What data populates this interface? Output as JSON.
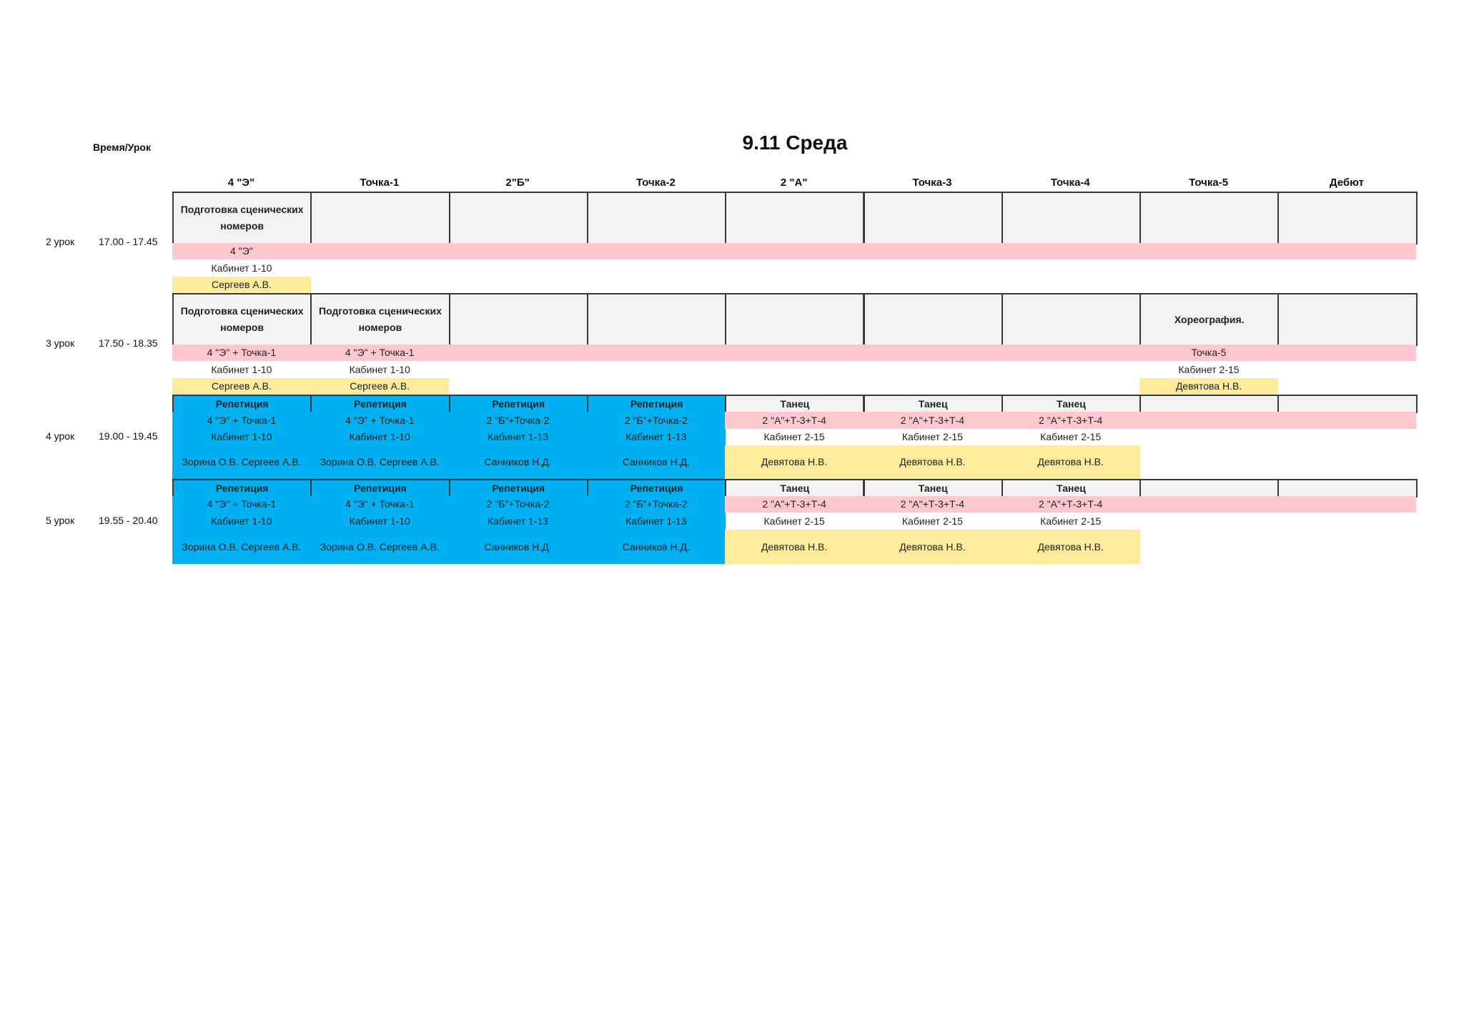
{
  "title": "9.11 Среда",
  "corner_label": "Время/Урок",
  "colors": {
    "blue": "#00b0f0",
    "pink": "#ffc7ce",
    "yellow": "#ffeb9c",
    "gray": "#f2f2f2"
  },
  "columns": [
    "4 \"Э\"",
    "Точка-1",
    "2\"Б\"",
    "Точка-2",
    "2 \"А\"",
    "Точка-3",
    "Точка-4",
    "Точка-5",
    "Дебют"
  ],
  "lessons": [
    {
      "label": "2 урок",
      "time": "17.00 - 17.45",
      "cells": [
        {
          "title": "Подготовка сценических номеров",
          "group": "4 \"Э\"",
          "room": "Кабинет 1-10",
          "teacher": "Сергеев А.В."
        },
        {},
        {},
        {},
        {},
        {},
        {},
        {},
        {}
      ]
    },
    {
      "label": "3 урок",
      "time": "17.50 - 18.35",
      "cells": [
        {
          "title": "Подготовка сценических номеров",
          "group": "4 \"Э\" + Точка-1",
          "room": "Кабинет 1-10",
          "teacher": "Сергеев А.В."
        },
        {
          "title": "Подготовка сценических номеров",
          "group": "4 \"Э\" + Точка-1",
          "room": "Кабинет 1-10",
          "teacher": "Сергеев А.В."
        },
        {},
        {},
        {},
        {},
        {},
        {
          "title": "Хореография.",
          "group": "Точка-5",
          "room": "Кабинет 2-15",
          "teacher": "Девятова Н.В."
        },
        {}
      ]
    },
    {
      "label": "4 урок",
      "time": "19.00 - 19.45",
      "cells": [
        {
          "highlight": "blue",
          "title": "Репетиция",
          "group": "4 \"Э\" + Точка-1",
          "room": "Кабинет 1-10",
          "teacher": "Зорина О.В.     Сергеев А.В."
        },
        {
          "highlight": "blue",
          "title": "Репетиция",
          "group": "4 \"Э\" + Точка-1",
          "room": "Кабинет 1-10",
          "teacher": "Зорина О.В.     Сергеев А.В."
        },
        {
          "highlight": "blue",
          "title": "Репетиция",
          "group": "2 \"Б\"+Точка-2",
          "room": "Кабинет 1-13",
          "teacher": "Санников Н.Д."
        },
        {
          "highlight": "blue",
          "title": "Репетиция",
          "group": "2 \"Б\"+Точка-2",
          "room": "Кабинет 1-13",
          "teacher": "Санников Н.Д."
        },
        {
          "title": "Танец",
          "group": "2 \"А\"+Т-3+Т-4",
          "room": "Кабинет 2-15",
          "teacher": "Девятова Н.В."
        },
        {
          "title": "Танец",
          "group": "2 \"А\"+Т-3+Т-4",
          "room": "Кабинет 2-15",
          "teacher": "Девятова Н.В."
        },
        {
          "title": "Танец",
          "group": "2 \"А\"+Т-3+Т-4",
          "room": "Кабинет 2-15",
          "teacher": "Девятова Н.В."
        },
        {},
        {}
      ]
    },
    {
      "label": "5 урок",
      "time": "19.55 - 20.40",
      "cells": [
        {
          "highlight": "blue",
          "title": "Репетиция",
          "group": "4 \"Э\" + Точка-1",
          "room": "Кабинет 1-10",
          "teacher": "Зорина О.В.     Сергеев А.В."
        },
        {
          "highlight": "blue",
          "title": "Репетиция",
          "group": "4 \"Э\" + Точка-1",
          "room": "Кабинет 1-10",
          "teacher": "Зорина О.В.     Сергеев А.В."
        },
        {
          "highlight": "blue",
          "title": "Репетиция",
          "group": "2 \"Б\"+Точка-2",
          "room": "Кабинет 1-13",
          "teacher": "Санников Н.Д."
        },
        {
          "highlight": "blue",
          "title": "Репетиция",
          "group": "2 \"Б\"+Точка-2",
          "room": "Кабинет 1-13",
          "teacher": "Санников Н.Д."
        },
        {
          "title": "Танец",
          "group": "2 \"А\"+Т-3+Т-4",
          "room": "Кабинет 2-15",
          "teacher": "Девятова Н.В."
        },
        {
          "title": "Танец",
          "group": "2 \"А\"+Т-3+Т-4",
          "room": "Кабинет 2-15",
          "teacher": "Девятова Н.В."
        },
        {
          "title": "Танец",
          "group": "2 \"А\"+Т-3+Т-4",
          "room": "Кабинет 2-15",
          "teacher": "Девятова Н.В."
        },
        {},
        {}
      ]
    }
  ]
}
